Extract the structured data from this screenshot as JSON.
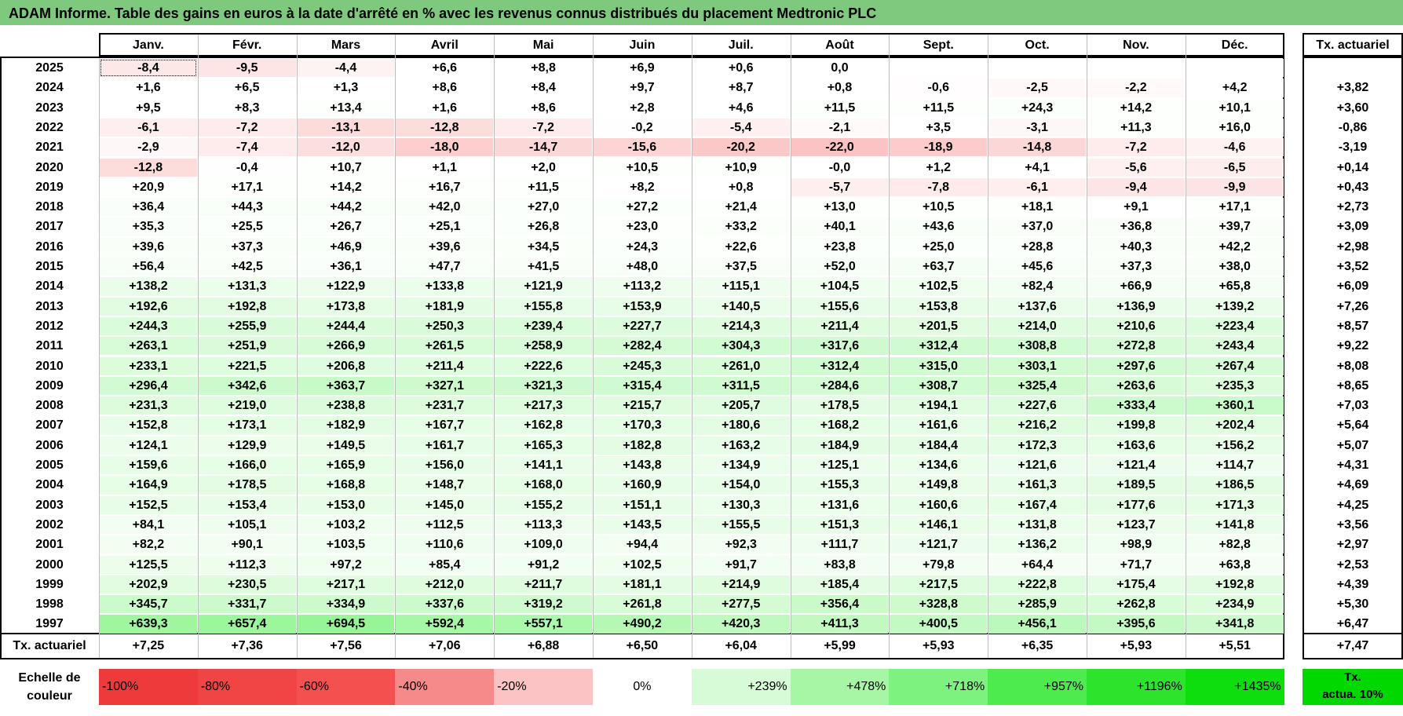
{
  "title": "ADAM Informe. Table des gains en euros à la date d'arrêté en % avec les revenus connus distribués du placement Medtronic PLC",
  "months": [
    "Janv.",
    "Févr.",
    "Mars",
    "Avril",
    "Mai",
    "Juin",
    "Juil.",
    "Août",
    "Sept.",
    "Oct.",
    "Nov.",
    "Déc."
  ],
  "tx_header": "Tx. actuariel",
  "rows": [
    {
      "year": "2025",
      "values": [
        "-8,4",
        "-9,5",
        "-4,4",
        "+6,6",
        "+8,8",
        "+6,9",
        "+0,6",
        "0,0",
        "",
        "",
        "",
        ""
      ],
      "tx": ""
    },
    {
      "year": "2024",
      "values": [
        "+1,6",
        "+6,5",
        "+1,3",
        "+8,6",
        "+8,4",
        "+9,7",
        "+8,7",
        "+0,8",
        "-0,6",
        "-2,5",
        "-2,2",
        "+4,2"
      ],
      "tx": "+3,82"
    },
    {
      "year": "2023",
      "values": [
        "+9,5",
        "+8,3",
        "+13,4",
        "+1,6",
        "+8,6",
        "+2,8",
        "+4,6",
        "+11,5",
        "+11,5",
        "+24,3",
        "+14,2",
        "+10,1"
      ],
      "tx": "+3,60"
    },
    {
      "year": "2022",
      "values": [
        "-6,1",
        "-7,2",
        "-13,1",
        "-12,8",
        "-7,2",
        "-0,2",
        "-5,4",
        "-2,1",
        "+3,5",
        "-3,1",
        "+11,3",
        "+16,0"
      ],
      "tx": "-0,86"
    },
    {
      "year": "2021",
      "values": [
        "-2,9",
        "-7,4",
        "-12,0",
        "-18,0",
        "-14,7",
        "-15,6",
        "-20,2",
        "-22,0",
        "-18,9",
        "-14,8",
        "-7,2",
        "-4,6"
      ],
      "tx": "-3,19"
    },
    {
      "year": "2020",
      "values": [
        "-12,8",
        "-0,4",
        "+10,7",
        "+1,1",
        "+2,0",
        "+10,5",
        "+10,9",
        "-0,0",
        "+1,2",
        "+4,1",
        "-5,6",
        "-6,5"
      ],
      "tx": "+0,14"
    },
    {
      "year": "2019",
      "values": [
        "+20,9",
        "+17,1",
        "+14,2",
        "+16,7",
        "+11,5",
        "+8,2",
        "+0,8",
        "-5,7",
        "-7,8",
        "-6,1",
        "-9,4",
        "-9,9"
      ],
      "tx": "+0,43"
    },
    {
      "year": "2018",
      "values": [
        "+36,4",
        "+44,3",
        "+44,2",
        "+42,0",
        "+27,0",
        "+27,2",
        "+21,4",
        "+13,0",
        "+10,5",
        "+18,1",
        "+9,1",
        "+17,1"
      ],
      "tx": "+2,73"
    },
    {
      "year": "2017",
      "values": [
        "+35,3",
        "+25,5",
        "+26,7",
        "+25,1",
        "+26,8",
        "+23,0",
        "+33,2",
        "+40,1",
        "+43,6",
        "+37,0",
        "+36,8",
        "+39,7"
      ],
      "tx": "+3,09"
    },
    {
      "year": "2016",
      "values": [
        "+39,6",
        "+37,3",
        "+46,9",
        "+39,6",
        "+34,5",
        "+24,3",
        "+22,6",
        "+23,8",
        "+25,0",
        "+28,8",
        "+40,3",
        "+42,2"
      ],
      "tx": "+2,98"
    },
    {
      "year": "2015",
      "values": [
        "+56,4",
        "+42,5",
        "+36,1",
        "+47,7",
        "+41,5",
        "+48,0",
        "+37,5",
        "+52,0",
        "+63,7",
        "+45,6",
        "+37,3",
        "+38,0"
      ],
      "tx": "+3,52"
    },
    {
      "year": "2014",
      "values": [
        "+138,2",
        "+131,3",
        "+122,9",
        "+133,8",
        "+121,9",
        "+113,2",
        "+115,1",
        "+104,5",
        "+102,5",
        "+82,4",
        "+66,9",
        "+65,8"
      ],
      "tx": "+6,09"
    },
    {
      "year": "2013",
      "values": [
        "+192,6",
        "+192,8",
        "+173,8",
        "+181,9",
        "+155,8",
        "+153,9",
        "+140,5",
        "+155,6",
        "+153,8",
        "+137,6",
        "+136,9",
        "+139,2"
      ],
      "tx": "+7,26"
    },
    {
      "year": "2012",
      "values": [
        "+244,3",
        "+255,9",
        "+244,4",
        "+250,3",
        "+239,4",
        "+227,7",
        "+214,3",
        "+211,4",
        "+201,5",
        "+214,0",
        "+210,6",
        "+223,4"
      ],
      "tx": "+8,57"
    },
    {
      "year": "2011",
      "values": [
        "+263,1",
        "+251,9",
        "+266,9",
        "+261,5",
        "+258,9",
        "+282,4",
        "+304,3",
        "+317,6",
        "+312,4",
        "+308,8",
        "+272,8",
        "+243,4"
      ],
      "tx": "+9,22"
    },
    {
      "year": "2010",
      "values": [
        "+233,1",
        "+221,5",
        "+206,8",
        "+211,4",
        "+222,6",
        "+245,3",
        "+261,0",
        "+312,4",
        "+315,0",
        "+303,1",
        "+297,6",
        "+267,4"
      ],
      "tx": "+8,08"
    },
    {
      "year": "2009",
      "values": [
        "+296,4",
        "+342,6",
        "+363,7",
        "+327,1",
        "+321,3",
        "+315,4",
        "+311,5",
        "+284,6",
        "+308,7",
        "+325,4",
        "+263,6",
        "+235,3"
      ],
      "tx": "+8,65"
    },
    {
      "year": "2008",
      "values": [
        "+231,3",
        "+219,0",
        "+238,8",
        "+231,7",
        "+217,3",
        "+215,7",
        "+205,7",
        "+178,5",
        "+194,1",
        "+227,6",
        "+333,4",
        "+360,1"
      ],
      "tx": "+7,03"
    },
    {
      "year": "2007",
      "values": [
        "+152,8",
        "+173,1",
        "+182,9",
        "+167,7",
        "+162,8",
        "+170,3",
        "+180,6",
        "+168,2",
        "+161,6",
        "+216,2",
        "+199,8",
        "+202,4"
      ],
      "tx": "+5,64"
    },
    {
      "year": "2006",
      "values": [
        "+124,1",
        "+129,9",
        "+149,5",
        "+161,7",
        "+165,3",
        "+182,8",
        "+163,2",
        "+184,9",
        "+184,4",
        "+172,3",
        "+163,6",
        "+156,2"
      ],
      "tx": "+5,07"
    },
    {
      "year": "2005",
      "values": [
        "+159,6",
        "+166,0",
        "+165,9",
        "+156,0",
        "+141,1",
        "+143,8",
        "+134,9",
        "+125,1",
        "+134,6",
        "+121,6",
        "+121,4",
        "+114,7"
      ],
      "tx": "+4,31"
    },
    {
      "year": "2004",
      "values": [
        "+164,9",
        "+178,5",
        "+168,8",
        "+148,7",
        "+168,0",
        "+160,9",
        "+154,0",
        "+155,3",
        "+149,8",
        "+161,3",
        "+189,5",
        "+186,5"
      ],
      "tx": "+4,69"
    },
    {
      "year": "2003",
      "values": [
        "+152,5",
        "+153,4",
        "+153,0",
        "+145,0",
        "+155,2",
        "+151,1",
        "+130,3",
        "+131,6",
        "+160,6",
        "+167,4",
        "+177,6",
        "+171,3"
      ],
      "tx": "+4,25"
    },
    {
      "year": "2002",
      "values": [
        "+84,1",
        "+105,1",
        "+103,2",
        "+112,5",
        "+113,3",
        "+143,5",
        "+155,5",
        "+151,3",
        "+146,1",
        "+131,8",
        "+123,7",
        "+141,8"
      ],
      "tx": "+3,56"
    },
    {
      "year": "2001",
      "values": [
        "+82,2",
        "+90,1",
        "+103,5",
        "+110,6",
        "+109,0",
        "+94,4",
        "+92,3",
        "+111,7",
        "+121,7",
        "+136,2",
        "+98,9",
        "+82,8"
      ],
      "tx": "+2,97"
    },
    {
      "year": "2000",
      "values": [
        "+125,5",
        "+112,3",
        "+97,2",
        "+85,4",
        "+91,2",
        "+102,5",
        "+91,7",
        "+83,8",
        "+79,8",
        "+64,4",
        "+71,7",
        "+63,8"
      ],
      "tx": "+2,53"
    },
    {
      "year": "1999",
      "values": [
        "+202,9",
        "+230,5",
        "+217,1",
        "+212,0",
        "+211,7",
        "+181,1",
        "+214,9",
        "+185,4",
        "+217,5",
        "+222,8",
        "+175,4",
        "+192,8"
      ],
      "tx": "+4,39"
    },
    {
      "year": "1998",
      "values": [
        "+345,7",
        "+331,7",
        "+334,9",
        "+337,6",
        "+319,2",
        "+261,8",
        "+277,5",
        "+356,4",
        "+328,8",
        "+285,9",
        "+262,8",
        "+234,9"
      ],
      "tx": "+5,30"
    },
    {
      "year": "1997",
      "values": [
        "+639,3",
        "+657,4",
        "+694,5",
        "+592,4",
        "+557,1",
        "+490,2",
        "+420,3",
        "+411,3",
        "+400,5",
        "+456,1",
        "+395,6",
        "+341,8"
      ],
      "tx": "+6,47"
    }
  ],
  "tx_row": {
    "label": "Tx. actuariel",
    "values": [
      "+7,25",
      "+7,36",
      "+7,56",
      "+7,06",
      "+6,88",
      "+6,50",
      "+6,04",
      "+5,99",
      "+5,93",
      "+6,35",
      "+5,93",
      "+5,51"
    ],
    "total": "+7,47"
  },
  "legend": {
    "label_line1": "Echelle de",
    "label_line2": "couleur",
    "items": [
      {
        "text": "-100%",
        "color": "#ee3a3a",
        "kind": "neg"
      },
      {
        "text": "-80%",
        "color": "#f14444",
        "kind": "neg"
      },
      {
        "text": "-60%",
        "color": "#f45050",
        "kind": "neg"
      },
      {
        "text": "-40%",
        "color": "#f68a8a",
        "kind": "neg"
      },
      {
        "text": "-20%",
        "color": "#fbc3c3",
        "kind": "neg"
      },
      {
        "text": "0%",
        "color": "#ffffff",
        "kind": "zero"
      },
      {
        "text": "+239%",
        "color": "#d6fbd6",
        "kind": "pos"
      },
      {
        "text": "+478%",
        "color": "#a6f6a6",
        "kind": "pos"
      },
      {
        "text": "+718%",
        "color": "#7ef27e",
        "kind": "pos"
      },
      {
        "text": "+957%",
        "color": "#4deb4d",
        "kind": "pos"
      },
      {
        "text": "+1196%",
        "color": "#2ce42c",
        "kind": "pos"
      },
      {
        "text": "+1435%",
        "color": "#0edd0e",
        "kind": "pos"
      }
    ],
    "tx_line1": "Tx.",
    "tx_line2": "actua. 10%",
    "tx_color": "#00d800"
  }
}
